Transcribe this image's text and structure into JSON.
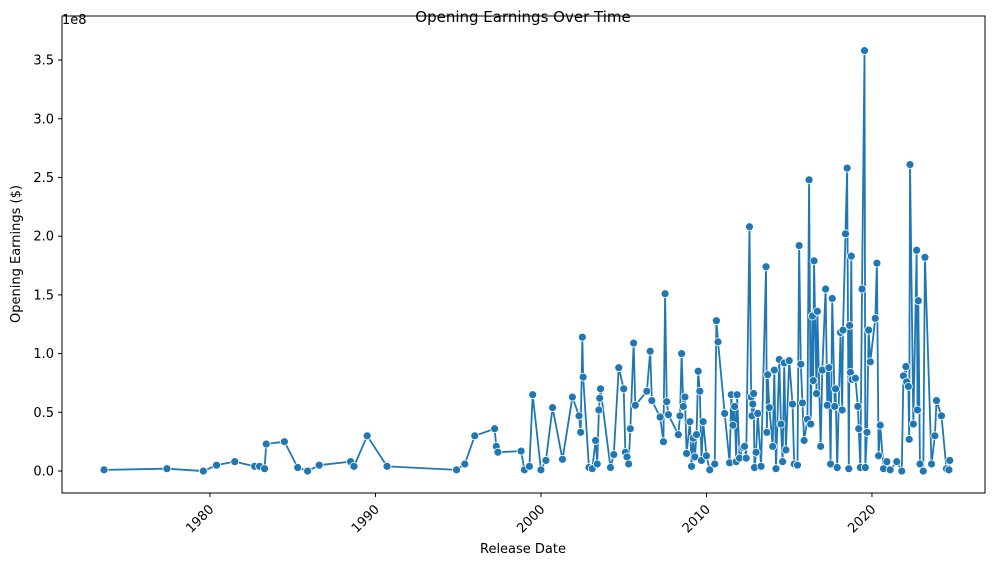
{
  "chart_data": {
    "type": "line",
    "title": "Opening Earnings Over Time",
    "x_label": "Release Date",
    "y_label": "Opening Earnings ($)",
    "y_offset_label": "1e8",
    "color": "#1f77b4",
    "x": [
      1973.6,
      1977.4,
      1979.6,
      1980.4,
      1981.5,
      1982.7,
      1983.0,
      1983.3,
      1983.4,
      1984.5,
      1985.3,
      1985.9,
      1986.6,
      1988.5,
      1988.7,
      1989.5,
      1990.7,
      1994.9,
      1995.4,
      1996.0,
      1997.2,
      1997.3,
      1997.4,
      1998.8,
      1999.0,
      1999.3,
      1999.5,
      2000.0,
      2000.3,
      2000.7,
      2001.3,
      2001.9,
      2002.3,
      2002.4,
      2002.5,
      2002.55,
      2002.9,
      2003.1,
      2003.3,
      2003.4,
      2003.5,
      2003.55,
      2003.6,
      2004.2,
      2004.4,
      2004.7,
      2005.0,
      2005.1,
      2005.2,
      2005.3,
      2005.4,
      2005.6,
      2005.7,
      2006.4,
      2006.6,
      2006.7,
      2007.2,
      2007.4,
      2007.5,
      2007.6,
      2007.7,
      2008.3,
      2008.4,
      2008.5,
      2008.6,
      2008.7,
      2008.8,
      2009.0,
      2009.1,
      2009.2,
      2009.3,
      2009.4,
      2009.5,
      2009.6,
      2009.7,
      2009.8,
      2010.0,
      2010.2,
      2010.5,
      2010.6,
      2010.7,
      2011.1,
      2011.4,
      2011.5,
      2011.6,
      2011.7,
      2011.8,
      2011.85,
      2012.0,
      2012.2,
      2012.3,
      2012.4,
      2012.6,
      2012.7,
      2012.75,
      2012.8,
      2012.85,
      2012.9,
      2013.0,
      2013.1,
      2013.3,
      2013.6,
      2013.65,
      2013.7,
      2013.8,
      2014.0,
      2014.1,
      2014.2,
      2014.4,
      2014.5,
      2014.6,
      2014.7,
      2014.8,
      2015.0,
      2015.2,
      2015.3,
      2015.5,
      2015.6,
      2015.7,
      2015.8,
      2015.9,
      2016.1,
      2016.2,
      2016.3,
      2016.4,
      2016.45,
      2016.5,
      2016.65,
      2016.7,
      2016.9,
      2017.0,
      2017.2,
      2017.3,
      2017.4,
      2017.5,
      2017.6,
      2017.75,
      2017.8,
      2017.9,
      2018.1,
      2018.2,
      2018.25,
      2018.4,
      2018.5,
      2018.6,
      2018.65,
      2018.7,
      2018.75,
      2018.8,
      2019.0,
      2019.15,
      2019.2,
      2019.3,
      2019.4,
      2019.55,
      2019.6,
      2019.7,
      2019.8,
      2019.9,
      2020.2,
      2020.3,
      2020.4,
      2020.5,
      2020.7,
      2020.9,
      2021.1,
      2021.5,
      2021.8,
      2021.9,
      2022.05,
      2022.1,
      2022.2,
      2022.25,
      2022.3,
      2022.5,
      2022.7,
      2022.75,
      2022.8,
      2022.9,
      2023.1,
      2023.2,
      2023.6,
      2023.8,
      2023.9,
      2024.2,
      2024.5,
      2024.65,
      2024.7
    ],
    "values": [
      0.01,
      0.02,
      0.0,
      0.05,
      0.08,
      0.04,
      0.04,
      0.02,
      0.23,
      0.25,
      0.03,
      0.0,
      0.05,
      0.08,
      0.04,
      0.3,
      0.04,
      0.01,
      0.06,
      0.3,
      0.36,
      0.21,
      0.16,
      0.17,
      0.01,
      0.04,
      0.65,
      0.01,
      0.09,
      0.54,
      0.1,
      0.63,
      0.47,
      0.33,
      1.14,
      0.8,
      0.03,
      0.02,
      0.26,
      0.06,
      0.52,
      0.62,
      0.7,
      0.03,
      0.14,
      0.88,
      0.7,
      0.16,
      0.12,
      0.06,
      0.36,
      1.09,
      0.56,
      0.68,
      1.02,
      0.6,
      0.46,
      0.25,
      1.51,
      0.59,
      0.48,
      0.31,
      0.47,
      1.0,
      0.55,
      0.63,
      0.15,
      0.42,
      0.04,
      0.28,
      0.12,
      0.31,
      0.85,
      0.68,
      0.09,
      0.42,
      0.13,
      0.01,
      0.06,
      1.28,
      1.1,
      0.49,
      0.07,
      0.65,
      0.39,
      0.55,
      0.08,
      0.65,
      0.11,
      0.2,
      0.21,
      0.11,
      2.08,
      0.63,
      0.47,
      0.57,
      0.66,
      0.03,
      0.16,
      0.49,
      0.04,
      1.74,
      0.33,
      0.82,
      0.54,
      0.21,
      0.86,
      0.02,
      0.95,
      0.4,
      0.08,
      0.92,
      0.18,
      0.94,
      0.57,
      0.06,
      0.05,
      1.92,
      0.91,
      0.58,
      0.26,
      0.44,
      2.48,
      0.4,
      1.32,
      0.77,
      1.79,
      0.66,
      1.36,
      0.21,
      0.86,
      1.55,
      0.56,
      0.88,
      0.06,
      1.47,
      0.55,
      0.7,
      0.03,
      1.18,
      0.52,
      1.2,
      2.02,
      2.58,
      0.02,
      1.24,
      0.84,
      1.83,
      0.78,
      0.79,
      0.55,
      0.36,
      0.03,
      1.55,
      3.58,
      0.03,
      0.33,
      1.2,
      0.93,
      1.3,
      1.77,
      0.13,
      0.39,
      0.02,
      0.08,
      0.01,
      0.08,
      0.0,
      0.81,
      0.89,
      0.76,
      0.72,
      0.27,
      2.61,
      0.4,
      1.88,
      0.52,
      1.45,
      0.06,
      0.0,
      1.82,
      0.06,
      0.3,
      0.6,
      0.47,
      0.02,
      0.01,
      0.09
    ],
    "xlim": [
      1971.06,
      2026.83
    ],
    "xticks": [
      1980,
      1990,
      2000,
      2010,
      2020
    ],
    "ylim": [
      -0.187,
      3.875
    ],
    "yticks": [
      {
        "value": 0,
        "label": "0.0"
      },
      {
        "value": 0.5,
        "label": "0.5"
      },
      {
        "value": 1,
        "label": "1.0"
      },
      {
        "value": 1.5,
        "label": "1.5"
      },
      {
        "value": 2,
        "label": "2.0"
      },
      {
        "value": 2.5,
        "label": "2.5"
      },
      {
        "value": 3,
        "label": "3.0"
      },
      {
        "value": 3.5,
        "label": "3.5"
      }
    ],
    "grid": false
  }
}
